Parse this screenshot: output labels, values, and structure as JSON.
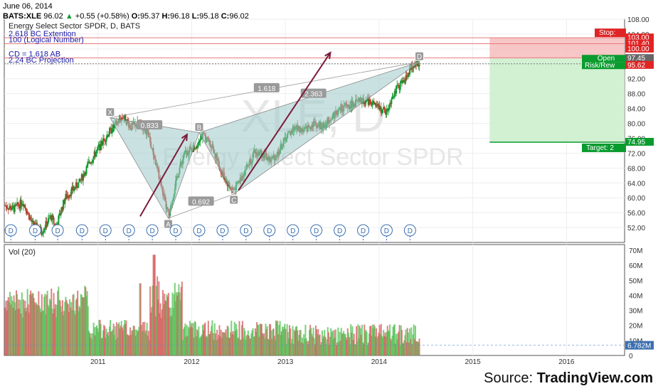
{
  "header": {
    "date": "June 06, 2014",
    "symbol": "BATS:XLE",
    "last": "96.02",
    "change": "+0.55 (+0.58%)",
    "open_label": "O:",
    "open": "95.37",
    "high_label": "H:",
    "high": "96.18",
    "low_label": "L:",
    "low": "95.18",
    "close_label": "C:",
    "close": "96.02"
  },
  "source": {
    "prefix": "Source: ",
    "brand": "TradingView.com"
  },
  "colors": {
    "bull": "#0a9b2e",
    "bear": "#c0392b",
    "pattern_fill": "#9fc9c9",
    "arrow": "#7b1c3a",
    "stop_zone": "#f5b8b8",
    "target_zone": "#cdeecd",
    "fib": "#1a1aa6"
  },
  "chart_data": {
    "type": "candlestick",
    "title": "Energy Select Sector SPDR, D, BATS",
    "watermark_symbol": "XLE, D",
    "watermark_name": "Energy Select Sector SPDR",
    "x_ticks": [
      "2011",
      "2012",
      "2013",
      "2014",
      "2015",
      "2016"
    ],
    "x_range": [
      2010.0,
      2016.62
    ],
    "price_axis": {
      "ylim": [
        48,
        108
      ],
      "ticks": [
        "52.00",
        "56.00",
        "60.00",
        "64.00",
        "68.00",
        "72.00",
        "76.00",
        "80.00",
        "84.00",
        "88.00",
        "92.00",
        "96.00",
        "100.00",
        "104.00",
        "108.00"
      ],
      "ticks_values": [
        52,
        56,
        60,
        64,
        68,
        72,
        76,
        80,
        84,
        88,
        92,
        96,
        100,
        104,
        108
      ]
    },
    "volume_axis": {
      "ylim": [
        0,
        70
      ],
      "ticks": [
        "0",
        "10M",
        "20M",
        "30M",
        "40M",
        "50M",
        "60M",
        "70M"
      ],
      "ticks_values": [
        0,
        10,
        20,
        30,
        40,
        50,
        60,
        70
      ],
      "label": "Vol (20)",
      "last_label": "6.782M",
      "last_value": 6.782
    },
    "price_path": [
      [
        2010.0,
        58
      ],
      [
        2010.1,
        57
      ],
      [
        2010.2,
        59
      ],
      [
        2010.3,
        53
      ],
      [
        2010.4,
        51
      ],
      [
        2010.5,
        55
      ],
      [
        2010.55,
        52
      ],
      [
        2010.65,
        60
      ],
      [
        2010.8,
        64
      ],
      [
        2010.9,
        69
      ],
      [
        2011.0,
        73
      ],
      [
        2011.1,
        77
      ],
      [
        2011.2,
        80
      ],
      [
        2011.27,
        82
      ],
      [
        2011.35,
        79
      ],
      [
        2011.45,
        80
      ],
      [
        2011.52,
        78
      ],
      [
        2011.6,
        71
      ],
      [
        2011.67,
        64
      ],
      [
        2011.72,
        58
      ],
      [
        2011.76,
        55
      ],
      [
        2011.82,
        63
      ],
      [
        2011.87,
        68
      ],
      [
        2011.93,
        72
      ],
      [
        2012.0,
        73
      ],
      [
        2012.05,
        74
      ],
      [
        2012.1,
        77
      ],
      [
        2012.15,
        76
      ],
      [
        2012.22,
        74
      ],
      [
        2012.3,
        68
      ],
      [
        2012.38,
        64
      ],
      [
        2012.44,
        62
      ],
      [
        2012.5,
        64
      ],
      [
        2012.58,
        68
      ],
      [
        2012.67,
        72
      ],
      [
        2012.75,
        72
      ],
      [
        2012.84,
        70
      ],
      [
        2012.92,
        72
      ],
      [
        2013.0,
        76
      ],
      [
        2013.1,
        79
      ],
      [
        2013.2,
        78
      ],
      [
        2013.3,
        80
      ],
      [
        2013.4,
        79
      ],
      [
        2013.5,
        82
      ],
      [
        2013.6,
        84
      ],
      [
        2013.7,
        85
      ],
      [
        2013.8,
        86
      ],
      [
        2013.9,
        86
      ],
      [
        2014.0,
        84
      ],
      [
        2014.08,
        83
      ],
      [
        2014.15,
        88
      ],
      [
        2014.25,
        91
      ],
      [
        2014.32,
        94
      ],
      [
        2014.38,
        96
      ],
      [
        2014.43,
        96
      ]
    ],
    "pattern": {
      "points": [
        {
          "name": "X",
          "x": 2011.13,
          "y": 81.5
        },
        {
          "name": "A",
          "x": 2011.75,
          "y": 54.5
        },
        {
          "name": "B",
          "x": 2012.08,
          "y": 77.5
        },
        {
          "name": "C",
          "x": 2012.45,
          "y": 61.0
        },
        {
          "name": "D",
          "x": 2014.43,
          "y": 96.5
        }
      ],
      "ratios": [
        {
          "label": "0.833",
          "x": 2011.55,
          "y": 79.5
        },
        {
          "label": "0.692",
          "x": 2012.1,
          "y": 59.0
        },
        {
          "label": "1.618",
          "x": 2012.8,
          "y": 89.5
        },
        {
          "label": "2.363",
          "x": 2013.3,
          "y": 88.0
        }
      ]
    },
    "arrows": [
      {
        "from": [
          2011.45,
          55
        ],
        "to": [
          2011.95,
          77
        ]
      },
      {
        "from": [
          2012.5,
          62
        ],
        "to": [
          2013.48,
          99
        ]
      }
    ],
    "fib_levels": [
      {
        "label": "2.618 BC Extention",
        "value": 103.0
      },
      {
        "label": "100 (Logical Number)",
        "value": 101.4
      },
      {
        "label": "CD = 1.618 AB",
        "value": 97.6
      },
      {
        "label": "2.24 BC Projection",
        "value": 96.0
      }
    ],
    "trade": {
      "entry_value": 97.45,
      "entry_label": "97.45",
      "stop_value": 103.0,
      "stop_label": "Stop:",
      "target_value": 74.95,
      "target_label": "Target: 2",
      "open_label": "Open",
      "risk_label": "Risk/Rew",
      "x_start": 2015.18,
      "x_end": 2016.62
    },
    "price_badges": [
      {
        "label": "103.00",
        "value": 103.0,
        "color": "#e02424"
      },
      {
        "label": "101.40",
        "value": 101.4,
        "color": "#e02424"
      },
      {
        "label": "100.00",
        "value": 100.0,
        "color": "#e02424"
      },
      {
        "label": "97.45",
        "value": 97.45,
        "color": "#666666"
      },
      {
        "label": "95.62",
        "value": 95.62,
        "color": "#e02424"
      },
      {
        "label": "74.95",
        "value": 74.95,
        "color": "#0a9b2e"
      }
    ],
    "dividends": {
      "label": "D",
      "x": [
        2010.07,
        2010.33,
        2010.57,
        2010.83,
        2011.08,
        2011.33,
        2011.58,
        2011.83,
        2012.08,
        2012.33,
        2012.58,
        2012.83,
        2013.08,
        2013.33,
        2013.58,
        2013.83,
        2014.08,
        2014.33
      ]
    }
  }
}
